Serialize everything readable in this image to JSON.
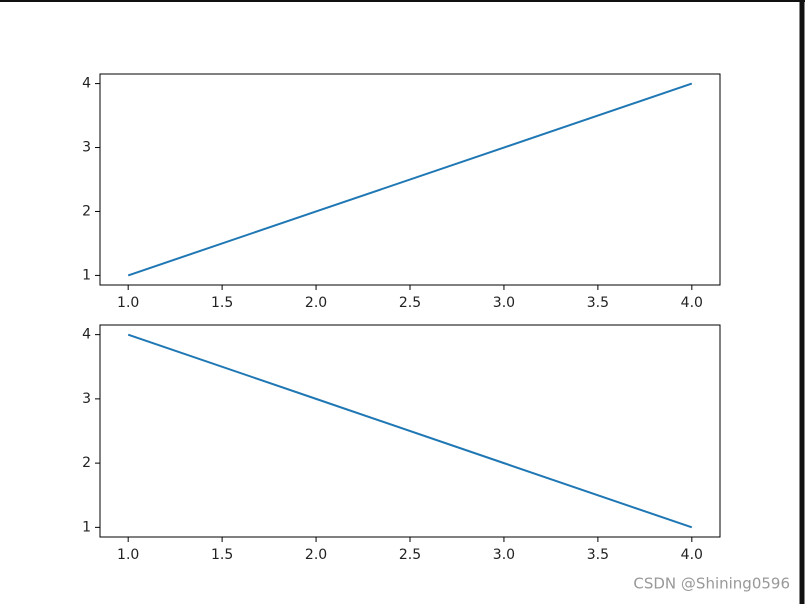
{
  "chart_data": [
    {
      "type": "line",
      "x": [
        1,
        2,
        3,
        4
      ],
      "series": [
        {
          "color": "#1f77b4",
          "values": [
            1,
            2,
            3,
            4
          ]
        }
      ],
      "xlim": [
        0.85,
        4.15
      ],
      "ylim": [
        0.85,
        4.15
      ],
      "xticks": [
        {
          "value": 1,
          "label": "1.0"
        },
        1.5,
        {
          "value": 2,
          "label": "2.0"
        },
        2.5,
        {
          "value": 3,
          "label": "3.0"
        },
        3.5,
        {
          "value": 4,
          "label": "4.0"
        }
      ],
      "yticks": [
        1,
        2,
        3,
        4
      ],
      "grid": false
    },
    {
      "type": "line",
      "x": [
        1,
        2,
        3,
        4
      ],
      "series": [
        {
          "color": "#1f77b4",
          "values": [
            4,
            3,
            2,
            1
          ]
        }
      ],
      "xlim": [
        0.85,
        4.15
      ],
      "ylim": [
        0.85,
        4.15
      ],
      "xticks": [
        {
          "value": 1,
          "label": "1.0"
        },
        1.5,
        {
          "value": 2,
          "label": "2.0"
        },
        2.5,
        {
          "value": 3,
          "label": "3.0"
        },
        3.5,
        {
          "value": 4,
          "label": "4.0"
        }
      ],
      "yticks": [
        1,
        2,
        3,
        4
      ],
      "grid": false
    }
  ],
  "watermark": "CSDN @Shining0596"
}
